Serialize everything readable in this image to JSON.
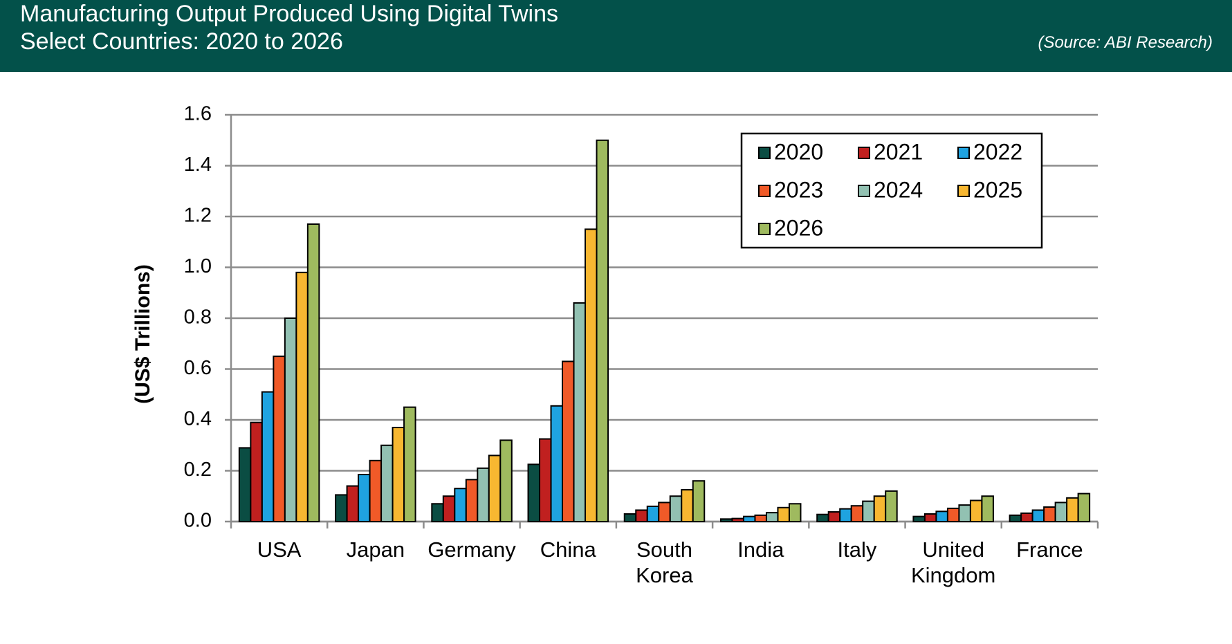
{
  "chart_data": {
    "type": "bar",
    "title": "Manufacturing Output Produced Using Digital Twins",
    "subtitle": "Select Countries: 2020 to 2026",
    "source": "(Source: ABI Research)",
    "y_label": "(US$ Trillions)",
    "categories": [
      "USA",
      "Japan",
      "Germany",
      "China",
      "South Korea",
      "India",
      "Italy",
      "United Kingdom",
      "France"
    ],
    "series": [
      {
        "name": "2020",
        "color": "#0b4d43",
        "values": [
          0.29,
          0.105,
          0.07,
          0.225,
          0.03,
          0.01,
          0.028,
          0.02,
          0.025
        ]
      },
      {
        "name": "2021",
        "color": "#c0201f",
        "values": [
          0.39,
          0.14,
          0.1,
          0.325,
          0.045,
          0.012,
          0.038,
          0.03,
          0.033
        ]
      },
      {
        "name": "2022",
        "color": "#1fa3e0",
        "values": [
          0.51,
          0.185,
          0.13,
          0.455,
          0.06,
          0.02,
          0.05,
          0.04,
          0.045
        ]
      },
      {
        "name": "2023",
        "color": "#f05a28",
        "values": [
          0.65,
          0.24,
          0.165,
          0.63,
          0.075,
          0.025,
          0.062,
          0.052,
          0.057
        ]
      },
      {
        "name": "2024",
        "color": "#92c1b2",
        "values": [
          0.8,
          0.3,
          0.21,
          0.86,
          0.1,
          0.035,
          0.08,
          0.065,
          0.075
        ]
      },
      {
        "name": "2025",
        "color": "#f7b731",
        "values": [
          0.98,
          0.37,
          0.26,
          1.15,
          0.125,
          0.055,
          0.1,
          0.083,
          0.093
        ]
      },
      {
        "name": "2026",
        "color": "#9fba5f",
        "values": [
          1.17,
          0.45,
          0.32,
          1.5,
          0.16,
          0.07,
          0.12,
          0.1,
          0.11
        ]
      }
    ],
    "ylim": [
      0,
      1.6
    ],
    "yticks": [
      {
        "value": 0,
        "label": "0.0"
      },
      0.2,
      0.4,
      0.6,
      0.8,
      {
        "value": 1,
        "label": "1.0"
      },
      1.2,
      1.4,
      1.6
    ],
    "grid": true,
    "legend": "top-right"
  }
}
